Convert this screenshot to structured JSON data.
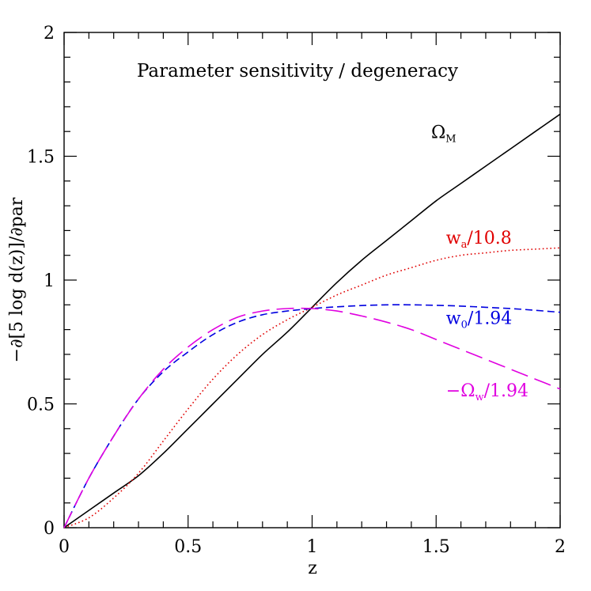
{
  "chart_data": {
    "type": "line",
    "title": "Parameter sensitivity / degeneracy",
    "xlabel": "z",
    "ylabel": "−∂[5 log d(z)]/∂par",
    "xlim": [
      0,
      2
    ],
    "ylim": [
      0,
      2
    ],
    "x_ticks": [
      0,
      0.5,
      1,
      1.5,
      2
    ],
    "x_tick_labels": [
      "0",
      "0.5",
      "1",
      "1.5",
      "2"
    ],
    "y_ticks": [
      0,
      0.5,
      1,
      1.5,
      2
    ],
    "y_tick_labels": [
      "0",
      "0.5",
      "1",
      "1.5",
      "2"
    ],
    "grid": false,
    "series": [
      {
        "label_main": "Ω",
        "label_sub": "M",
        "label_rest": "",
        "color": "#000000",
        "style": "solid",
        "x": [
          0,
          0.1,
          0.2,
          0.3,
          0.4,
          0.5,
          0.6,
          0.7,
          0.8,
          0.9,
          1.0,
          1.1,
          1.2,
          1.3,
          1.4,
          1.5,
          1.6,
          1.7,
          1.8,
          1.9,
          2.0
        ],
        "y": [
          0,
          0.07,
          0.14,
          0.21,
          0.3,
          0.4,
          0.5,
          0.6,
          0.7,
          0.79,
          0.89,
          0.99,
          1.08,
          1.16,
          1.24,
          1.32,
          1.39,
          1.46,
          1.53,
          1.6,
          1.67
        ]
      },
      {
        "label_main": "w",
        "label_sub": "a",
        "label_rest": "/10.8",
        "color": "#e00000",
        "style": "dotted",
        "x": [
          0,
          0.1,
          0.2,
          0.3,
          0.4,
          0.5,
          0.6,
          0.7,
          0.8,
          0.9,
          1.0,
          1.1,
          1.2,
          1.3,
          1.4,
          1.5,
          1.6,
          1.7,
          1.8,
          1.9,
          2.0
        ],
        "y": [
          0,
          0.04,
          0.12,
          0.22,
          0.35,
          0.48,
          0.6,
          0.7,
          0.78,
          0.84,
          0.89,
          0.94,
          0.98,
          1.02,
          1.05,
          1.08,
          1.1,
          1.11,
          1.12,
          1.125,
          1.13
        ]
      },
      {
        "label_main": "w",
        "label_sub": "0",
        "label_rest": "/1.94",
        "color": "#0000e0",
        "style": "dashed",
        "x": [
          0,
          0.1,
          0.2,
          0.3,
          0.4,
          0.5,
          0.6,
          0.7,
          0.8,
          0.9,
          1.0,
          1.1,
          1.2,
          1.3,
          1.4,
          1.5,
          1.6,
          1.7,
          1.8,
          1.9,
          2.0
        ],
        "y": [
          0,
          0.2,
          0.37,
          0.52,
          0.63,
          0.71,
          0.78,
          0.83,
          0.86,
          0.875,
          0.885,
          0.892,
          0.897,
          0.9,
          0.9,
          0.898,
          0.895,
          0.89,
          0.885,
          0.878,
          0.87
        ]
      },
      {
        "label_main": "−Ω",
        "label_sub": "w",
        "label_rest": "/1.94",
        "color": "#e000e0",
        "style": "longdash",
        "x": [
          0,
          0.1,
          0.2,
          0.3,
          0.4,
          0.5,
          0.6,
          0.7,
          0.8,
          0.9,
          1.0,
          1.1,
          1.2,
          1.3,
          1.4,
          1.5,
          1.6,
          1.7,
          1.8,
          1.9,
          2.0
        ],
        "y": [
          0,
          0.2,
          0.37,
          0.52,
          0.64,
          0.73,
          0.8,
          0.85,
          0.875,
          0.885,
          0.885,
          0.875,
          0.855,
          0.83,
          0.8,
          0.76,
          0.72,
          0.68,
          0.64,
          0.6,
          0.56
        ]
      }
    ]
  }
}
